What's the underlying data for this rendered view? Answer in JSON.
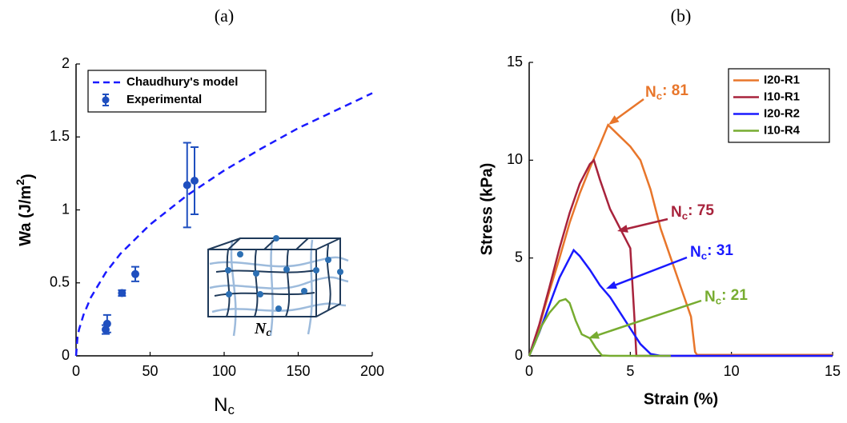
{
  "chart_data": [
    {
      "type": "scatter",
      "panel_label": "(a)",
      "xlabel": [
        "N",
        "c"
      ],
      "ylabel": [
        "Wa (J/m",
        "2",
        ")"
      ],
      "xlim": [
        0,
        200
      ],
      "xticks": [
        0,
        50,
        100,
        150,
        200
      ],
      "ylim": [
        0,
        2
      ],
      "yticks": [
        0,
        0.5,
        1,
        1.5,
        2
      ],
      "legend": "upper left",
      "inset_label": [
        "N",
        "c"
      ],
      "series": [
        {
          "name": "Chaudhury's model",
          "color": "#1a1aff",
          "style": "dashed",
          "x": [
            0,
            1,
            2,
            5,
            10,
            20,
            30,
            50,
            75,
            100,
            125,
            150,
            175,
            200
          ],
          "values": [
            0,
            0.13,
            0.18,
            0.28,
            0.4,
            0.57,
            0.7,
            0.9,
            1.1,
            1.27,
            1.42,
            1.56,
            1.68,
            1.8
          ]
        },
        {
          "name": "Experimental",
          "color": "#1f4fbf",
          "style": "errorbar",
          "x": [
            20,
            21,
            31,
            40,
            75,
            80
          ],
          "values": [
            0.18,
            0.22,
            0.43,
            0.56,
            1.17,
            1.2
          ],
          "errors": [
            0.03,
            0.06,
            0.02,
            0.05,
            0.29,
            0.23
          ]
        }
      ]
    },
    {
      "type": "line",
      "panel_label": "(b)",
      "xlabel": "Strain (%)",
      "ylabel": "Stress (kPa)",
      "xlim": [
        0,
        15
      ],
      "xticks": [
        0,
        5,
        10,
        15
      ],
      "ylim": [
        0,
        15
      ],
      "yticks": [
        0,
        5,
        10,
        15
      ],
      "legend": "upper right",
      "series": [
        {
          "name": "I20-R1",
          "color": "#e8762b",
          "x": [
            0,
            0.5,
            1,
            1.5,
            2,
            2.5,
            3,
            3.5,
            3.9,
            4.3,
            5,
            5.5,
            6,
            6.5,
            7,
            7.5,
            8,
            8.2,
            8.3,
            9,
            10,
            12,
            15
          ],
          "values": [
            0,
            1.5,
            3.3,
            5,
            6.8,
            8.3,
            9.6,
            10.8,
            11.8,
            11.4,
            10.7,
            10,
            8.5,
            6.5,
            5,
            3.5,
            2,
            0.2,
            0.05,
            0.05,
            0.05,
            0.05,
            0.05
          ]
        },
        {
          "name": "I10-R1",
          "color": "#a8233c",
          "x": [
            0,
            0.5,
            1,
            1.5,
            2,
            2.5,
            3,
            3.2,
            3.5,
            4,
            4.5,
            5,
            5.2,
            5.3,
            15
          ],
          "values": [
            0,
            1.6,
            3.5,
            5.5,
            7.3,
            8.8,
            9.8,
            10,
            9,
            7.5,
            6.5,
            5.5,
            2,
            0,
            0
          ]
        },
        {
          "name": "I20-R2",
          "color": "#1a1aff",
          "x": [
            0,
            0.5,
            1,
            1.5,
            2,
            2.2,
            2.5,
            3,
            3.5,
            4,
            4.5,
            5,
            5.5,
            6,
            6.5,
            15
          ],
          "values": [
            0,
            1.2,
            2.6,
            4,
            5,
            5.4,
            5.1,
            4.4,
            3.6,
            3,
            2.2,
            1.4,
            0.6,
            0.1,
            0,
            0
          ]
        },
        {
          "name": "I10-R4",
          "color": "#77ac30",
          "x": [
            0,
            0.3,
            0.6,
            1,
            1.5,
            1.8,
            2,
            2.3,
            2.6,
            3,
            3.3,
            3.6,
            4,
            7
          ],
          "values": [
            0,
            0.7,
            1.5,
            2.2,
            2.8,
            2.9,
            2.7,
            1.8,
            1.1,
            0.9,
            0.4,
            0.02,
            0,
            0
          ]
        }
      ],
      "annotations": [
        {
          "text": [
            "N",
            "c",
            ": 81"
          ]
        },
        {
          "text": [
            "N",
            "c",
            ": 75"
          ]
        },
        {
          "text": [
            "N",
            "c",
            ": 31"
          ]
        },
        {
          "text": [
            "N",
            "c",
            ": 21"
          ]
        }
      ]
    }
  ]
}
